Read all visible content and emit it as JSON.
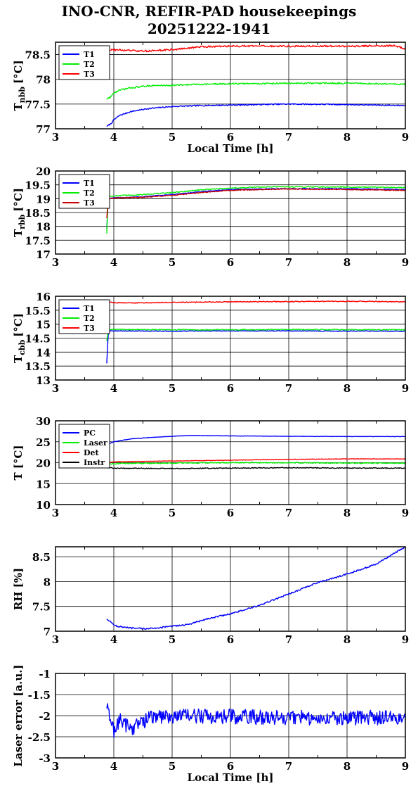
{
  "title": {
    "line1": "INO-CNR, REFIR-PAD housekeepings",
    "line2": "20251222-1941"
  },
  "colors": {
    "blue": "#0000ff",
    "green": "#00ee00",
    "red": "#ff0000",
    "black": "#000000"
  },
  "chart_data": [
    {
      "type": "line",
      "id": "tnbb",
      "ylabel_main": "T",
      "ylabel_sub": "nbb",
      "ylabel_unit": "[°C]",
      "xlabel": "Local Time [h]",
      "xlim": [
        3,
        9
      ],
      "ylim": [
        77,
        78.75
      ],
      "yticks": [
        77,
        77.5,
        78,
        78.5
      ],
      "ytick_labels": [
        "77",
        "77.5",
        "78",
        "78.5"
      ],
      "xticks": [
        3,
        4,
        5,
        6,
        7,
        8,
        9
      ],
      "xtick_labels": [
        "3",
        "4",
        "5",
        "6",
        "7",
        "8",
        "9"
      ],
      "grid": true,
      "legend": "top-left",
      "series": [
        {
          "name": "T1",
          "color": "#0000ff",
          "noise": 0.012,
          "x": [
            3.88,
            3.95,
            4.0,
            4.1,
            4.3,
            4.6,
            5.0,
            5.5,
            6.0,
            7.0,
            8.0,
            9.0
          ],
          "y": [
            77.05,
            77.1,
            77.18,
            77.27,
            77.35,
            77.41,
            77.45,
            77.47,
            77.48,
            77.5,
            77.49,
            77.47
          ]
        },
        {
          "name": "T2",
          "color": "#00ee00",
          "noise": 0.015,
          "x": [
            3.88,
            3.95,
            4.0,
            4.1,
            4.3,
            4.6,
            5.0,
            5.5,
            6.0,
            7.0,
            8.0,
            9.0
          ],
          "y": [
            77.6,
            77.65,
            77.72,
            77.78,
            77.83,
            77.87,
            77.88,
            77.9,
            77.91,
            77.92,
            77.92,
            77.9
          ]
        },
        {
          "name": "T3",
          "color": "#ff0000",
          "noise": 0.018,
          "x": [
            3.88,
            3.95,
            4.5,
            5.0,
            5.2,
            5.5,
            6.0,
            7.0,
            8.0,
            8.8,
            9.0
          ],
          "y": [
            78.58,
            78.6,
            78.57,
            78.6,
            78.62,
            78.66,
            78.67,
            78.67,
            78.67,
            78.68,
            78.62
          ]
        }
      ]
    },
    {
      "type": "line",
      "id": "trbb",
      "ylabel_main": "T",
      "ylabel_sub": "rbb",
      "ylabel_unit": "[°C]",
      "xlabel": "",
      "xlim": [
        3,
        9
      ],
      "ylim": [
        17,
        20
      ],
      "yticks": [
        17,
        17.5,
        18,
        18.5,
        19,
        19.5,
        20
      ],
      "ytick_labels": [
        "17",
        "17.5",
        "18",
        "18.5",
        "19",
        "19.5",
        "20"
      ],
      "xticks": [
        3,
        4,
        5,
        6,
        7,
        8,
        9
      ],
      "xtick_labels": [
        "3",
        "4",
        "5",
        "6",
        "7",
        "8",
        "9"
      ],
      "grid": true,
      "legend": "top-left",
      "series": [
        {
          "name": "T1",
          "color": "#0000ff",
          "noise": 0.015,
          "x": [
            3.88,
            3.9,
            3.93,
            4.0,
            4.5,
            5.0,
            5.5,
            6.0,
            6.5,
            7.0,
            8.0,
            9.0
          ],
          "y": [
            17.9,
            18.9,
            19.0,
            19.03,
            19.07,
            19.15,
            19.25,
            19.33,
            19.35,
            19.36,
            19.36,
            19.33
          ]
        },
        {
          "name": "T2",
          "color": "#00ee00",
          "noise": 0.018,
          "x": [
            3.88,
            3.9,
            3.93,
            4.0,
            4.5,
            5.0,
            5.5,
            6.0,
            6.5,
            7.0,
            8.0,
            9.0
          ],
          "y": [
            17.75,
            19.05,
            19.08,
            19.1,
            19.15,
            19.22,
            19.32,
            19.38,
            19.42,
            19.43,
            19.42,
            19.4
          ]
        },
        {
          "name": "T3",
          "color": "#cc0000",
          "noise": 0.015,
          "x": [
            3.88,
            3.9,
            3.93,
            4.0,
            4.5,
            5.0,
            5.5,
            6.0,
            6.5,
            7.0,
            8.0,
            9.0
          ],
          "y": [
            18.3,
            18.95,
            19.0,
            19.02,
            19.05,
            19.12,
            19.22,
            19.3,
            19.33,
            19.35,
            19.33,
            19.3
          ]
        }
      ]
    },
    {
      "type": "line",
      "id": "tcbb",
      "ylabel_main": "T",
      "ylabel_sub": "cbb",
      "ylabel_unit": "[°C]",
      "xlabel": "",
      "xlim": [
        3,
        9
      ],
      "ylim": [
        13,
        16
      ],
      "yticks": [
        13,
        13.5,
        14,
        14.5,
        15,
        15.5,
        16
      ],
      "ytick_labels": [
        "13",
        "13.5",
        "14",
        "14.5",
        "15",
        "15.5",
        "16"
      ],
      "xticks": [
        3,
        4,
        5,
        6,
        7,
        8,
        9
      ],
      "xtick_labels": [
        "3",
        "4",
        "5",
        "6",
        "7",
        "8",
        "9"
      ],
      "grid": true,
      "legend": "top-left",
      "series": [
        {
          "name": "T1",
          "color": "#0000ff",
          "noise": 0.012,
          "x": [
            3.88,
            3.9,
            3.93,
            4.0,
            5.0,
            6.0,
            7.0,
            8.0,
            9.0
          ],
          "y": [
            13.6,
            14.6,
            14.75,
            14.76,
            14.75,
            14.76,
            14.76,
            14.75,
            14.75
          ]
        },
        {
          "name": "T2",
          "color": "#00ee00",
          "noise": 0.018,
          "x": [
            3.88,
            3.9,
            3.93,
            4.0,
            5.0,
            6.0,
            7.0,
            8.0,
            9.0
          ],
          "y": [
            14.4,
            14.7,
            14.82,
            14.81,
            14.8,
            14.8,
            14.81,
            14.8,
            14.8
          ]
        },
        {
          "name": "T3",
          "color": "#ff0000",
          "noise": 0.015,
          "x": [
            3.88,
            3.92,
            4.0,
            4.3,
            5.0,
            6.0,
            7.0,
            8.0,
            9.0
          ],
          "y": [
            15.85,
            15.8,
            15.77,
            15.76,
            15.78,
            15.8,
            15.81,
            15.82,
            15.8
          ]
        }
      ]
    },
    {
      "type": "line",
      "id": "temps",
      "ylabel_main": "T [°C]",
      "ylabel_sub": "",
      "ylabel_unit": "",
      "xlabel": "",
      "xlim": [
        3,
        9
      ],
      "ylim": [
        10,
        30
      ],
      "yticks": [
        10,
        15,
        20,
        25,
        30
      ],
      "ytick_labels": [
        "10",
        "15",
        "20",
        "25",
        "30"
      ],
      "xticks": [
        3,
        4,
        5,
        6,
        7,
        8,
        9
      ],
      "xtick_labels": [
        "3",
        "4",
        "5",
        "6",
        "7",
        "8",
        "9"
      ],
      "grid": true,
      "legend": "top-left",
      "series": [
        {
          "name": "PC",
          "color": "#0000ff",
          "noise": 0.04,
          "x": [
            3.88,
            4.0,
            4.3,
            4.6,
            5.0,
            5.3,
            5.6,
            6.0,
            7.0,
            8.0,
            9.0
          ],
          "y": [
            24.3,
            25.0,
            25.7,
            26.0,
            26.3,
            26.5,
            26.45,
            26.4,
            26.3,
            26.25,
            26.25
          ]
        },
        {
          "name": "Laser",
          "color": "#00ee00",
          "noise": 0.12,
          "x": [
            3.88,
            4.0,
            5.0,
            6.0,
            7.0,
            8.0,
            9.0
          ],
          "y": [
            19.6,
            19.8,
            19.9,
            20.0,
            20.0,
            19.9,
            19.9
          ]
        },
        {
          "name": "Det",
          "color": "#ff0000",
          "noise": 0.05,
          "x": [
            3.88,
            4.0,
            5.0,
            6.0,
            7.0,
            8.0,
            9.0
          ],
          "y": [
            20.0,
            20.2,
            20.4,
            20.6,
            20.8,
            20.9,
            20.9
          ]
        },
        {
          "name": "Instr",
          "color": "#000000",
          "noise": 0.1,
          "x": [
            3.88,
            4.0,
            5.0,
            6.0,
            7.0,
            8.0,
            9.0
          ],
          "y": [
            18.8,
            18.7,
            18.6,
            18.7,
            18.8,
            18.7,
            18.7
          ]
        }
      ]
    },
    {
      "type": "line",
      "id": "rh",
      "ylabel_main": "RH [%]",
      "ylabel_sub": "",
      "ylabel_unit": "",
      "xlabel": "",
      "xlim": [
        3,
        9
      ],
      "ylim": [
        7,
        8.7
      ],
      "yticks": [
        7,
        7.5,
        8,
        8.5
      ],
      "ytick_labels": [
        "7",
        "7.5",
        "8",
        "8.5"
      ],
      "xticks": [
        3,
        4,
        5,
        6,
        7,
        8,
        9
      ],
      "xtick_labels": [
        "3",
        "4",
        "5",
        "6",
        "7",
        "8",
        "9"
      ],
      "grid": true,
      "legend": "none",
      "series": [
        {
          "name": "",
          "color": "#0000ff",
          "noise": 0.015,
          "x": [
            3.88,
            3.95,
            4.05,
            4.3,
            4.6,
            5.0,
            5.3,
            5.6,
            6.0,
            6.5,
            7.0,
            7.5,
            8.0,
            8.5,
            9.0
          ],
          "y": [
            7.25,
            7.18,
            7.1,
            7.06,
            7.05,
            7.1,
            7.14,
            7.25,
            7.35,
            7.52,
            7.75,
            7.98,
            8.15,
            8.35,
            8.7
          ]
        }
      ]
    },
    {
      "type": "line",
      "id": "laser",
      "ylabel_main": "Laser error [a.u.]",
      "ylabel_sub": "",
      "ylabel_unit": "",
      "xlabel": "Local Time [h]",
      "xlim": [
        3,
        9
      ],
      "ylim": [
        -3,
        -1
      ],
      "yticks": [
        -3,
        -2.5,
        -2,
        -1.5,
        -1
      ],
      "ytick_labels": [
        "-3",
        "-2.5",
        "-2",
        "-1.5",
        "-1"
      ],
      "xticks": [
        3,
        4,
        5,
        6,
        7,
        8,
        9
      ],
      "xtick_labels": [
        "3",
        "4",
        "5",
        "6",
        "7",
        "8",
        "9"
      ],
      "grid": true,
      "legend": "none",
      "series": [
        {
          "name": "",
          "color": "#0000ff",
          "noise": 0.18,
          "x": [
            3.88,
            3.92,
            4.0,
            4.1,
            4.3,
            4.6,
            5.0,
            6.0,
            7.0,
            8.0,
            9.0
          ],
          "y": [
            -1.8,
            -2.0,
            -2.35,
            -2.1,
            -2.3,
            -2.05,
            -2.0,
            -2.02,
            -2.05,
            -2.05,
            -2.05
          ]
        }
      ]
    }
  ]
}
